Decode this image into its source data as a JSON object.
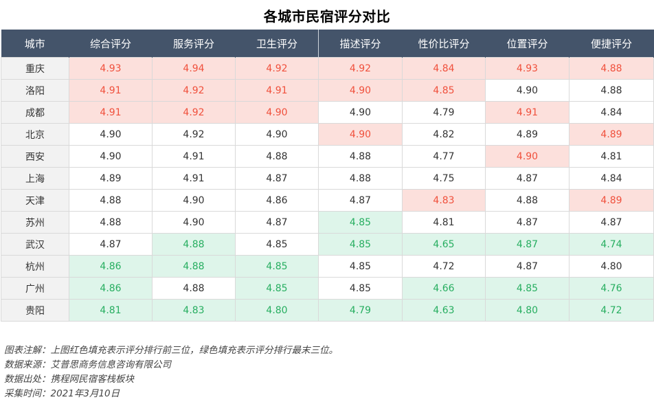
{
  "chart_data": {
    "type": "table",
    "title": "各城市民宿评分对比",
    "columns": [
      "城市",
      "综合评分",
      "服务评分",
      "卫生评分",
      "描述评分",
      "性价比评分",
      "位置评分",
      "便捷评分"
    ],
    "rows": [
      {
        "city": "重庆",
        "values": [
          "4.93",
          "4.94",
          "4.92",
          "4.92",
          "4.84",
          "4.93",
          "4.88"
        ],
        "marks": [
          "hi",
          "hi",
          "hi",
          "hi",
          "hi",
          "hi",
          "hi"
        ]
      },
      {
        "city": "洛阳",
        "values": [
          "4.91",
          "4.92",
          "4.91",
          "4.90",
          "4.85",
          "4.90",
          "4.88"
        ],
        "marks": [
          "hi",
          "hi",
          "hi",
          "hi",
          "hi",
          "",
          ""
        ]
      },
      {
        "city": "成都",
        "values": [
          "4.91",
          "4.92",
          "4.90",
          "4.90",
          "4.79",
          "4.91",
          "4.84"
        ],
        "marks": [
          "hi",
          "hi",
          "hi",
          "",
          "",
          "hi",
          ""
        ]
      },
      {
        "city": "北京",
        "values": [
          "4.90",
          "4.92",
          "4.90",
          "4.90",
          "4.82",
          "4.89",
          "4.89"
        ],
        "marks": [
          "",
          "",
          "",
          "hi",
          "",
          "",
          "hi"
        ]
      },
      {
        "city": "西安",
        "values": [
          "4.90",
          "4.91",
          "4.88",
          "4.88",
          "4.77",
          "4.90",
          "4.81"
        ],
        "marks": [
          "",
          "",
          "",
          "",
          "",
          "hi",
          ""
        ]
      },
      {
        "city": "上海",
        "values": [
          "4.89",
          "4.91",
          "4.87",
          "4.88",
          "4.75",
          "4.87",
          "4.84"
        ],
        "marks": [
          "",
          "",
          "",
          "",
          "",
          "",
          ""
        ]
      },
      {
        "city": "天津",
        "values": [
          "4.88",
          "4.90",
          "4.86",
          "4.87",
          "4.83",
          "4.88",
          "4.89"
        ],
        "marks": [
          "",
          "",
          "",
          "",
          "hi",
          "",
          "hi"
        ]
      },
      {
        "city": "苏州",
        "values": [
          "4.88",
          "4.90",
          "4.87",
          "4.85",
          "4.81",
          "4.87",
          "4.87"
        ],
        "marks": [
          "",
          "",
          "",
          "lo",
          "",
          "",
          ""
        ]
      },
      {
        "city": "武汉",
        "values": [
          "4.87",
          "4.88",
          "4.85",
          "4.85",
          "4.65",
          "4.87",
          "4.74"
        ],
        "marks": [
          "",
          "lo",
          "",
          "lo",
          "lo",
          "lo",
          "lo"
        ]
      },
      {
        "city": "杭州",
        "values": [
          "4.86",
          "4.88",
          "4.85",
          "4.85",
          "4.72",
          "4.87",
          "4.80"
        ],
        "marks": [
          "lo",
          "lo",
          "lo",
          "",
          "",
          "",
          ""
        ]
      },
      {
        "city": "广州",
        "values": [
          "4.86",
          "4.88",
          "4.85",
          "4.85",
          "4.66",
          "4.85",
          "4.76"
        ],
        "marks": [
          "lo",
          "",
          "lo",
          "",
          "lo",
          "lo",
          "lo"
        ]
      },
      {
        "city": "贵阳",
        "values": [
          "4.81",
          "4.83",
          "4.80",
          "4.79",
          "4.63",
          "4.80",
          "4.72"
        ],
        "marks": [
          "lo",
          "lo",
          "lo",
          "lo",
          "lo",
          "lo",
          "lo"
        ]
      }
    ],
    "highlight_colors": {
      "top3_fill": "#fce0dc",
      "top3_text": "#f0503c",
      "bottom3_fill": "#def5ea",
      "bottom3_text": "#27ae60"
    },
    "header_color": "#44546a"
  },
  "notes": [
    "图表注解：上图红色填充表示评分排行前三位，绿色填充表示评分排行最末三位。",
    "数据来源：艾普思商务信息咨询有限公司",
    "数据出处：携程网民宿客栈板块",
    "采集时间：2021年3月10日"
  ]
}
